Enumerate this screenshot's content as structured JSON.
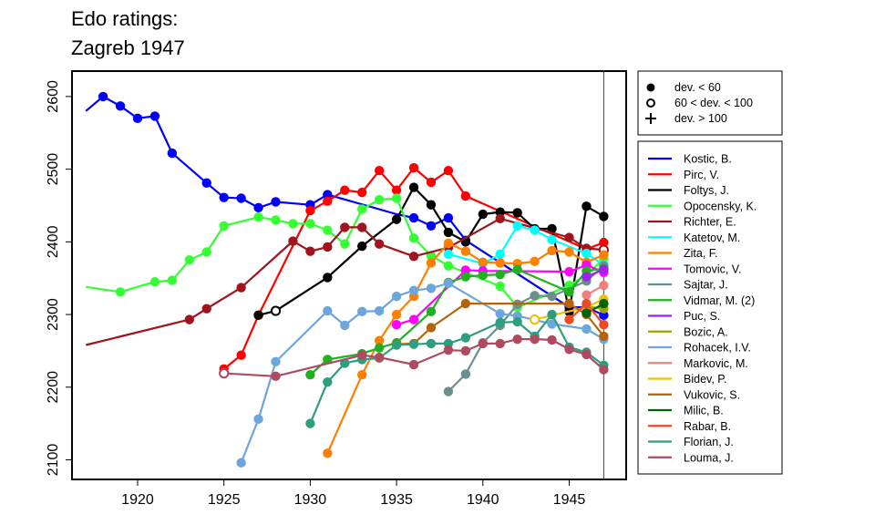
{
  "chart_data": {
    "type": "line",
    "title": [
      "Edo ratings:",
      "Zagreb 1947"
    ],
    "xlabel": "",
    "ylabel": "",
    "xlim": [
      1916.2,
      1948.3
    ],
    "ylim": [
      2073,
      2635
    ],
    "x_ticks": [
      1920,
      1925,
      1930,
      1935,
      1940,
      1945
    ],
    "y_ticks": [
      2100,
      2200,
      2300,
      2400,
      2500,
      2600
    ],
    "event_marker_x": 1947,
    "grid": false,
    "legend_position": "right",
    "marker_legend": [
      {
        "symbol": "filled-circle",
        "label": "dev. < 60"
      },
      {
        "symbol": "open-circle",
        "label": "60 < dev. < 100"
      },
      {
        "symbol": "plus",
        "label": "dev. > 100"
      }
    ],
    "series": [
      {
        "name": "Kostic, B.",
        "color": "#0000FF",
        "points": [
          [
            1917,
            2580,
            "none"
          ],
          [
            1918,
            2600,
            "f"
          ],
          [
            1919,
            2587,
            "f"
          ],
          [
            1920,
            2570,
            "f"
          ],
          [
            1921,
            2573,
            "f"
          ],
          [
            1922,
            2522,
            "f"
          ],
          [
            1924,
            2481,
            "f"
          ],
          [
            1925,
            2461,
            "f"
          ],
          [
            1926,
            2460,
            "f"
          ],
          [
            1927,
            2447,
            "f"
          ],
          [
            1928,
            2455,
            "f"
          ],
          [
            1930,
            2451,
            "f"
          ],
          [
            1931,
            2465,
            "f"
          ],
          [
            1935,
            2438,
            "none"
          ],
          [
            1936,
            2433,
            "f"
          ],
          [
            1937,
            2422,
            "f"
          ],
          [
            1938,
            2433,
            "f"
          ],
          [
            1939,
            2402,
            "f"
          ],
          [
            1945,
            2310,
            "f"
          ],
          [
            1946,
            2310,
            "f"
          ],
          [
            1947,
            2299,
            "f"
          ]
        ]
      },
      {
        "name": "Pirc, V.",
        "color": "#FF0000",
        "points": [
          [
            1925,
            2225,
            "f"
          ],
          [
            1926,
            2244,
            "f"
          ],
          [
            1927,
            2299,
            "f"
          ],
          [
            1930,
            2443,
            "f"
          ],
          [
            1931,
            2456,
            "f"
          ],
          [
            1932,
            2471,
            "f"
          ],
          [
            1933,
            2468,
            "f"
          ],
          [
            1934,
            2498,
            "f"
          ],
          [
            1935,
            2471,
            "f"
          ],
          [
            1936,
            2502,
            "f"
          ],
          [
            1937,
            2482,
            "f"
          ],
          [
            1938,
            2498,
            "f"
          ],
          [
            1939,
            2463,
            "f"
          ],
          [
            1946,
            2390,
            "f"
          ],
          [
            1947,
            2399,
            "f"
          ]
        ]
      },
      {
        "name": "Foltys, J.",
        "color": "#000000",
        "points": [
          [
            1927,
            2299,
            "f"
          ],
          [
            1928,
            2305,
            "o"
          ],
          [
            1931,
            2351,
            "f"
          ],
          [
            1933,
            2394,
            "f"
          ],
          [
            1935,
            2431,
            "f"
          ],
          [
            1936,
            2475,
            "f"
          ],
          [
            1937,
            2451,
            "f"
          ],
          [
            1938,
            2413,
            "f"
          ],
          [
            1939,
            2400,
            "f"
          ],
          [
            1940,
            2438,
            "f"
          ],
          [
            1941,
            2441,
            "f"
          ],
          [
            1942,
            2440,
            "f"
          ],
          [
            1943,
            2418,
            "f"
          ],
          [
            1944,
            2418,
            "f"
          ],
          [
            1945,
            2304,
            "f"
          ],
          [
            1946,
            2449,
            "f"
          ],
          [
            1947,
            2435,
            "f"
          ]
        ]
      },
      {
        "name": "Opocensky, K.",
        "color": "#33FF33",
        "points": [
          [
            1917,
            2338,
            "none"
          ],
          [
            1919,
            2331,
            "f"
          ],
          [
            1921,
            2345,
            "f"
          ],
          [
            1922,
            2347,
            "f"
          ],
          [
            1923,
            2375,
            "f"
          ],
          [
            1924,
            2386,
            "f"
          ],
          [
            1925,
            2422,
            "f"
          ],
          [
            1927,
            2434,
            "f"
          ],
          [
            1928,
            2430,
            "f"
          ],
          [
            1929,
            2425,
            "f"
          ],
          [
            1930,
            2425,
            "f"
          ],
          [
            1931,
            2416,
            "f"
          ],
          [
            1932,
            2397,
            "f"
          ],
          [
            1933,
            2445,
            "f"
          ],
          [
            1934,
            2458,
            "f"
          ],
          [
            1935,
            2460,
            "f"
          ],
          [
            1936,
            2405,
            "f"
          ],
          [
            1937,
            2381,
            "f"
          ],
          [
            1938,
            2367,
            "f"
          ],
          [
            1941,
            2339,
            "f"
          ],
          [
            1942,
            2310,
            "f"
          ],
          [
            1945,
            2340,
            "f"
          ],
          [
            1946,
            2354,
            "f"
          ],
          [
            1947,
            2377,
            "f"
          ]
        ]
      },
      {
        "name": "Richter, E.",
        "color": "#A0141E",
        "points": [
          [
            1917,
            2258,
            "none"
          ],
          [
            1923,
            2293,
            "f"
          ],
          [
            1924,
            2308,
            "f"
          ],
          [
            1926,
            2337,
            "f"
          ],
          [
            1929,
            2401,
            "f"
          ],
          [
            1930,
            2387,
            "f"
          ],
          [
            1931,
            2393,
            "f"
          ],
          [
            1932,
            2420,
            "f"
          ],
          [
            1933,
            2420,
            "f"
          ],
          [
            1934,
            2397,
            "f"
          ],
          [
            1936,
            2380,
            "f"
          ],
          [
            1938,
            2392,
            "f"
          ],
          [
            1941,
            2432,
            "f"
          ],
          [
            1945,
            2406,
            "f"
          ],
          [
            1946,
            2391,
            "f"
          ],
          [
            1947,
            2389,
            "o"
          ]
        ]
      },
      {
        "name": "Katetov, M.",
        "color": "#00FFFF",
        "points": [
          [
            1938,
            2383,
            "f"
          ],
          [
            1940,
            2370,
            "f"
          ],
          [
            1941,
            2383,
            "f"
          ],
          [
            1942,
            2422,
            "f"
          ],
          [
            1943,
            2416,
            "f"
          ],
          [
            1944,
            2403,
            "f"
          ],
          [
            1946,
            2384,
            "f"
          ],
          [
            1947,
            2368,
            "f"
          ]
        ]
      },
      {
        "name": "Zita, F.",
        "color": "#FF7F00",
        "points": [
          [
            1931,
            2109,
            "f"
          ],
          [
            1933,
            2217,
            "f"
          ],
          [
            1934,
            2264,
            "f"
          ],
          [
            1935,
            2300,
            "f"
          ],
          [
            1936,
            2325,
            "f"
          ],
          [
            1937,
            2371,
            "f"
          ],
          [
            1938,
            2398,
            "f"
          ],
          [
            1939,
            2387,
            "f"
          ],
          [
            1940,
            2372,
            "f"
          ],
          [
            1941,
            2371,
            "f"
          ],
          [
            1942,
            2370,
            "f"
          ],
          [
            1943,
            2373,
            "f"
          ],
          [
            1944,
            2388,
            "f"
          ],
          [
            1945,
            2386,
            "f"
          ],
          [
            1946,
            2372,
            "f"
          ],
          [
            1947,
            2382,
            "f"
          ]
        ]
      },
      {
        "name": "Tomovic, V.",
        "color": "#FF00FF",
        "points": [
          [
            1935,
            2286,
            "f"
          ],
          [
            1936,
            2293,
            "f"
          ],
          [
            1939,
            2361,
            "f"
          ],
          [
            1940,
            2360,
            "f"
          ],
          [
            1945,
            2359,
            "f"
          ],
          [
            1946,
            2368,
            "f"
          ],
          [
            1947,
            2358,
            "f"
          ]
        ]
      },
      {
        "name": "Sajtar, J.",
        "color": "#6B8E8E",
        "points": [
          [
            1938,
            2194,
            "f"
          ],
          [
            1939,
            2218,
            "f"
          ],
          [
            1940,
            2261,
            "f"
          ],
          [
            1941,
            2285,
            "f"
          ],
          [
            1942,
            2314,
            "f"
          ],
          [
            1943,
            2326,
            "f"
          ],
          [
            1944,
            2325,
            "f"
          ],
          [
            1946,
            2346,
            "f"
          ],
          [
            1947,
            2367,
            "f"
          ]
        ]
      },
      {
        "name": "Vidmar, M. (2)",
        "color": "#22B022",
        "points": [
          [
            1930,
            2217,
            "f"
          ],
          [
            1931,
            2238,
            "f"
          ],
          [
            1933,
            2246,
            "f"
          ],
          [
            1934,
            2254,
            "f"
          ],
          [
            1935,
            2261,
            "f"
          ],
          [
            1937,
            2304,
            "f"
          ],
          [
            1938,
            2344,
            "f"
          ],
          [
            1939,
            2352,
            "f"
          ],
          [
            1940,
            2354,
            "f"
          ],
          [
            1941,
            2355,
            "f"
          ],
          [
            1942,
            2362,
            "f"
          ],
          [
            1945,
            2331,
            "f"
          ],
          [
            1946,
            2360,
            "f"
          ],
          [
            1947,
            2363,
            "f"
          ]
        ]
      },
      {
        "name": "Puc, S.",
        "color": "#A020F0",
        "points": [
          [
            1946,
            2352,
            "f"
          ],
          [
            1947,
            2362,
            "f"
          ]
        ]
      },
      {
        "name": "Bozic, A.",
        "color": "#A0A000",
        "points": [
          [
            1946,
            2311,
            "f"
          ],
          [
            1947,
            2308,
            "f"
          ]
        ]
      },
      {
        "name": "Rohacek, I.V.",
        "color": "#6CA6DC",
        "points": [
          [
            1926,
            2096,
            "f"
          ],
          [
            1927,
            2156,
            "f"
          ],
          [
            1928,
            2235,
            "f"
          ],
          [
            1931,
            2305,
            "f"
          ],
          [
            1932,
            2285,
            "f"
          ],
          [
            1933,
            2304,
            "f"
          ],
          [
            1934,
            2305,
            "f"
          ],
          [
            1935,
            2325,
            "f"
          ],
          [
            1936,
            2333,
            "f"
          ],
          [
            1937,
            2336,
            "f"
          ],
          [
            1938,
            2343,
            "f"
          ],
          [
            1941,
            2301,
            "f"
          ],
          [
            1942,
            2298,
            "f"
          ],
          [
            1944,
            2287,
            "f"
          ],
          [
            1946,
            2280,
            "f"
          ],
          [
            1947,
            2266,
            "f"
          ]
        ]
      },
      {
        "name": "Markovic, M.",
        "color": "#F08080",
        "points": [
          [
            1946,
            2327,
            "f"
          ],
          [
            1947,
            2340,
            "f"
          ]
        ]
      },
      {
        "name": "Bidev, P.",
        "color": "#F0C000",
        "points": [
          [
            1943,
            2293,
            "o"
          ],
          [
            1946,
            2310,
            "f"
          ],
          [
            1947,
            2321,
            "f"
          ]
        ]
      },
      {
        "name": "Vukovic, S.",
        "color": "#B5640A",
        "points": [
          [
            1935,
            2259,
            "f"
          ],
          [
            1936,
            2260,
            "f"
          ],
          [
            1937,
            2282,
            "f"
          ],
          [
            1939,
            2315,
            "f"
          ],
          [
            1945,
            2315,
            "f"
          ],
          [
            1946,
            2300,
            "f"
          ],
          [
            1947,
            2270,
            "f"
          ]
        ]
      },
      {
        "name": "Milic, B.",
        "color": "#006400",
        "points": [
          [
            1946,
            2302,
            "f"
          ],
          [
            1947,
            2315,
            "f"
          ]
        ]
      },
      {
        "name": "Rabar, B.",
        "color": "#F04A24",
        "points": [
          [
            1945,
            2293,
            "f"
          ],
          [
            1946,
            2315,
            "f"
          ],
          [
            1947,
            2286,
            "f"
          ]
        ]
      },
      {
        "name": "Florian, J.",
        "color": "#2E9E7E",
        "points": [
          [
            1930,
            2150,
            "f"
          ],
          [
            1931,
            2207,
            "f"
          ],
          [
            1932,
            2233,
            "f"
          ],
          [
            1933,
            2238,
            "f"
          ],
          [
            1934,
            2240,
            "f"
          ],
          [
            1935,
            2258,
            "f"
          ],
          [
            1936,
            2259,
            "f"
          ],
          [
            1937,
            2260,
            "f"
          ],
          [
            1938,
            2260,
            "f"
          ],
          [
            1939,
            2268,
            "f"
          ],
          [
            1941,
            2289,
            "f"
          ],
          [
            1942,
            2290,
            "f"
          ],
          [
            1943,
            2270,
            "f"
          ],
          [
            1944,
            2300,
            "f"
          ],
          [
            1945,
            2255,
            "f"
          ],
          [
            1946,
            2248,
            "f"
          ],
          [
            1947,
            2230,
            "f"
          ]
        ]
      },
      {
        "name": "Louma, J.",
        "color": "#B04A60",
        "points": [
          [
            1925,
            2219,
            "o"
          ],
          [
            1928,
            2215,
            "f"
          ],
          [
            1933,
            2244,
            "f"
          ],
          [
            1934,
            2241,
            "f"
          ],
          [
            1936,
            2231,
            "f"
          ],
          [
            1938,
            2251,
            "f"
          ],
          [
            1939,
            2250,
            "f"
          ],
          [
            1940,
            2260,
            "f"
          ],
          [
            1941,
            2260,
            "f"
          ],
          [
            1942,
            2266,
            "f"
          ],
          [
            1943,
            2266,
            "f"
          ],
          [
            1944,
            2265,
            "f"
          ],
          [
            1945,
            2252,
            "f"
          ],
          [
            1946,
            2245,
            "f"
          ],
          [
            1947,
            2224,
            "f"
          ]
        ]
      }
    ]
  }
}
